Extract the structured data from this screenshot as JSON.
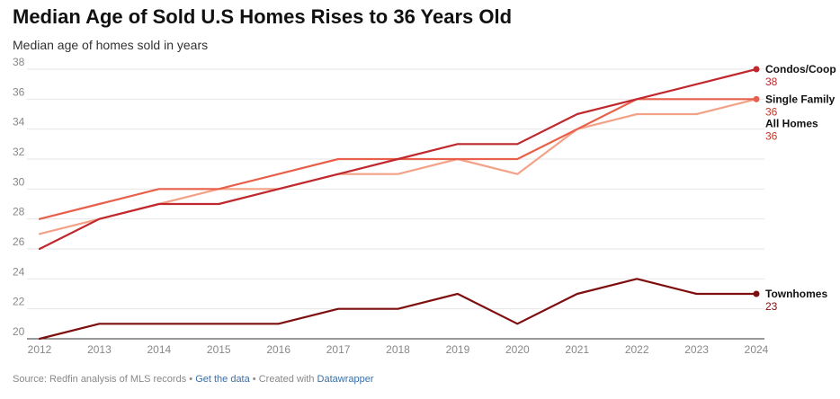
{
  "title": "Median Age of Sold U.S Homes Rises to 36 Years Old",
  "subtitle": "Median age of homes sold in years",
  "footer": {
    "source": "Source: Redfin analysis of MLS records",
    "sep1": "•",
    "get_data": "Get the data",
    "sep2": "•",
    "created_with": "Created with",
    "datawrapper": "Datawrapper"
  },
  "chart_data": {
    "type": "line",
    "title": "Median Age of Sold U.S Homes Rises to 36 Years Old",
    "subtitle": "Median age of homes sold in years",
    "xlabel": "",
    "ylabel": "Median age of homes sold in years",
    "x": [
      2012,
      2013,
      2014,
      2015,
      2016,
      2017,
      2018,
      2019,
      2020,
      2021,
      2022,
      2023,
      2024
    ],
    "ylim": [
      20,
      38
    ],
    "yticks": [
      20,
      22,
      24,
      26,
      28,
      30,
      32,
      34,
      36,
      38
    ],
    "grid": true,
    "series": [
      {
        "name": "All Homes",
        "color": "#f4a287",
        "values": [
          27,
          28,
          29,
          30,
          30,
          31,
          31,
          32,
          31,
          34,
          35,
          35,
          36
        ],
        "end_label": "36",
        "value_color": "#c0392b",
        "show_marker": false
      },
      {
        "name": "Single Family",
        "color": "#e8604c",
        "values": [
          28,
          29,
          30,
          30,
          31,
          32,
          32,
          32,
          32,
          34,
          36,
          36,
          36
        ],
        "end_label": "36",
        "value_color": "#c0392b",
        "show_marker": true
      },
      {
        "name": "Condos/Coop",
        "color": "#c0282d",
        "values": [
          26,
          28,
          29,
          29,
          30,
          31,
          32,
          33,
          33,
          35,
          36,
          37,
          38
        ],
        "end_label": "38",
        "value_color": "#c0282d",
        "show_marker": true
      },
      {
        "name": "Townhomes",
        "color": "#7f0e0e",
        "values": [
          20,
          21,
          21,
          21,
          21,
          22,
          22,
          23,
          21,
          23,
          24,
          23,
          23
        ],
        "end_label": "23",
        "value_color": "#7f0e0e",
        "show_marker": true
      }
    ]
  }
}
